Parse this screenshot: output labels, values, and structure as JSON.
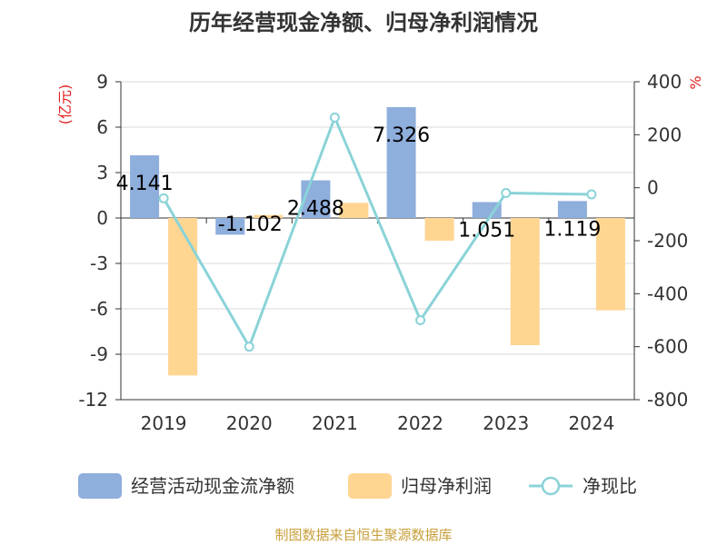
{
  "chart_data": {
    "type": "bar+line",
    "title": "历年经营现金净额、归母净利润情况",
    "categories": [
      "2019",
      "2020",
      "2021",
      "2022",
      "2023",
      "2024"
    ],
    "series": [
      {
        "name": "经营活动现金流净额",
        "type": "bar",
        "axis": "left",
        "values": [
          4.141,
          -1.102,
          2.488,
          7.326,
          1.051,
          1.119
        ],
        "labels": [
          "4.141",
          "-1.102",
          "2.488",
          "7.326",
          "1.051",
          "1.119"
        ],
        "color": "#8EAEDC"
      },
      {
        "name": "归母净利润",
        "type": "bar",
        "axis": "left",
        "values": [
          -10.4,
          0.2,
          1.0,
          -1.5,
          -8.4,
          -6.1
        ],
        "color": "#FFD592"
      },
      {
        "name": "净现比",
        "type": "line",
        "axis": "right",
        "values": [
          -40,
          -600,
          265,
          -500,
          -20,
          -25
        ],
        "color": "#8AD3D8"
      }
    ],
    "y_left": {
      "label": "(亿元)",
      "min": -12,
      "max": 9,
      "ticks": [
        9,
        6,
        3,
        0,
        -3,
        -6,
        -9,
        -12
      ],
      "tick_labels": [
        "9",
        "6",
        "3",
        "0",
        "-3",
        "-6",
        "-9",
        "-12"
      ]
    },
    "y_right": {
      "label": "%",
      "min": -800,
      "max": 400,
      "ticks": [
        400,
        200,
        0,
        -200,
        -400,
        -600,
        -800
      ],
      "tick_labels": [
        "400",
        "200",
        "0",
        "-200",
        "-400",
        "-600",
        "-800"
      ]
    },
    "grid": true,
    "legend_position": "bottom"
  },
  "source": "制图数据来自恒生聚源数据库",
  "colors": {
    "axis_label": "#E02020",
    "source": "#C8A03C",
    "grid": "#D9D9D9",
    "axis": "#333333"
  }
}
